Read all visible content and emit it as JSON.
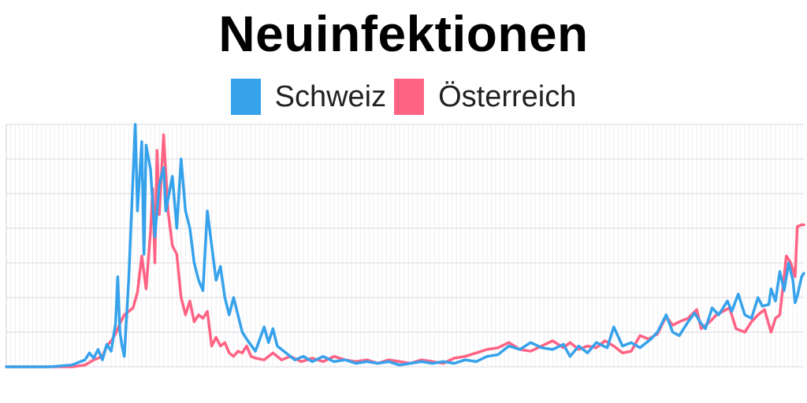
{
  "chart_data": {
    "type": "line",
    "title": "Neuinfektionen",
    "xlabel": "",
    "ylabel": "",
    "ylim": [
      0,
      1400
    ],
    "xlim": [
      0,
      365
    ],
    "grid": true,
    "legend_position": "top",
    "series": [
      {
        "name": "Schweiz",
        "color": "#36a2eb",
        "points": [
          [
            0,
            0
          ],
          [
            20,
            0
          ],
          [
            30,
            10
          ],
          [
            34,
            30
          ],
          [
            36,
            40
          ],
          [
            38,
            80
          ],
          [
            40,
            50
          ],
          [
            42,
            100
          ],
          [
            44,
            40
          ],
          [
            46,
            130
          ],
          [
            48,
            90
          ],
          [
            50,
            250
          ],
          [
            51,
            520
          ],
          [
            52,
            200
          ],
          [
            53,
            120
          ],
          [
            54,
            60
          ],
          [
            56,
            500
          ],
          [
            58,
            1100
          ],
          [
            59,
            1400
          ],
          [
            60,
            900
          ],
          [
            62,
            1300
          ],
          [
            63,
            650
          ],
          [
            64,
            1280
          ],
          [
            66,
            1140
          ],
          [
            68,
            750
          ],
          [
            70,
            1050
          ],
          [
            72,
            1150
          ],
          [
            73,
            900
          ],
          [
            76,
            1100
          ],
          [
            78,
            800
          ],
          [
            80,
            1200
          ],
          [
            82,
            900
          ],
          [
            84,
            800
          ],
          [
            86,
            600
          ],
          [
            88,
            500
          ],
          [
            90,
            440
          ],
          [
            92,
            900
          ],
          [
            94,
            700
          ],
          [
            96,
            500
          ],
          [
            98,
            580
          ],
          [
            100,
            400
          ],
          [
            102,
            300
          ],
          [
            104,
            400
          ],
          [
            106,
            300
          ],
          [
            108,
            200
          ],
          [
            110,
            160
          ],
          [
            114,
            90
          ],
          [
            118,
            230
          ],
          [
            120,
            140
          ],
          [
            122,
            220
          ],
          [
            124,
            120
          ],
          [
            126,
            100
          ],
          [
            128,
            80
          ],
          [
            130,
            60
          ],
          [
            132,
            40
          ],
          [
            136,
            60
          ],
          [
            140,
            30
          ],
          [
            145,
            60
          ],
          [
            150,
            30
          ],
          [
            155,
            40
          ],
          [
            160,
            20
          ],
          [
            165,
            30
          ],
          [
            170,
            20
          ],
          [
            175,
            30
          ],
          [
            180,
            10
          ],
          [
            185,
            20
          ],
          [
            190,
            30
          ],
          [
            195,
            20
          ],
          [
            200,
            30
          ],
          [
            205,
            20
          ],
          [
            210,
            40
          ],
          [
            215,
            30
          ],
          [
            220,
            60
          ],
          [
            225,
            70
          ],
          [
            230,
            120
          ],
          [
            235,
            100
          ],
          [
            240,
            140
          ],
          [
            245,
            110
          ],
          [
            250,
            100
          ],
          [
            255,
            130
          ],
          [
            258,
            60
          ],
          [
            262,
            120
          ],
          [
            266,
            80
          ],
          [
            270,
            140
          ],
          [
            275,
            110
          ],
          [
            278,
            230
          ],
          [
            282,
            120
          ],
          [
            286,
            140
          ],
          [
            290,
            110
          ],
          [
            295,
            160
          ],
          [
            298,
            200
          ],
          [
            300,
            250
          ],
          [
            302,
            300
          ],
          [
            305,
            200
          ],
          [
            308,
            180
          ],
          [
            312,
            260
          ],
          [
            315,
            310
          ],
          [
            318,
            250
          ],
          [
            320,
            220
          ],
          [
            323,
            340
          ],
          [
            326,
            300
          ],
          [
            330,
            380
          ],
          [
            332,
            320
          ],
          [
            335,
            420
          ],
          [
            338,
            300
          ],
          [
            341,
            280
          ],
          [
            344,
            400
          ],
          [
            346,
            350
          ],
          [
            349,
            360
          ],
          [
            350,
            450
          ],
          [
            352,
            380
          ],
          [
            354,
            550
          ],
          [
            356,
            440
          ],
          [
            358,
            600
          ],
          [
            360,
            500
          ],
          [
            361,
            370
          ],
          [
            362,
            410
          ],
          [
            364,
            520
          ],
          [
            365,
            540
          ]
        ]
      },
      {
        "name": "Österreich",
        "color": "#ff6384",
        "points": [
          [
            0,
            0
          ],
          [
            30,
            0
          ],
          [
            36,
            10
          ],
          [
            40,
            40
          ],
          [
            44,
            60
          ],
          [
            46,
            120
          ],
          [
            48,
            150
          ],
          [
            50,
            190
          ],
          [
            52,
            250
          ],
          [
            54,
            300
          ],
          [
            56,
            320
          ],
          [
            58,
            340
          ],
          [
            60,
            430
          ],
          [
            62,
            640
          ],
          [
            64,
            450
          ],
          [
            66,
            780
          ],
          [
            67,
            1030
          ],
          [
            68,
            600
          ],
          [
            69,
            1250
          ],
          [
            70,
            880
          ],
          [
            72,
            1340
          ],
          [
            74,
            900
          ],
          [
            76,
            700
          ],
          [
            78,
            650
          ],
          [
            80,
            400
          ],
          [
            82,
            300
          ],
          [
            84,
            380
          ],
          [
            86,
            260
          ],
          [
            88,
            300
          ],
          [
            90,
            280
          ],
          [
            92,
            320
          ],
          [
            94,
            120
          ],
          [
            96,
            170
          ],
          [
            98,
            120
          ],
          [
            100,
            140
          ],
          [
            102,
            80
          ],
          [
            104,
            60
          ],
          [
            106,
            90
          ],
          [
            108,
            80
          ],
          [
            110,
            120
          ],
          [
            112,
            60
          ],
          [
            114,
            50
          ],
          [
            118,
            40
          ],
          [
            122,
            80
          ],
          [
            126,
            40
          ],
          [
            130,
            60
          ],
          [
            135,
            30
          ],
          [
            140,
            50
          ],
          [
            145,
            30
          ],
          [
            150,
            60
          ],
          [
            155,
            40
          ],
          [
            160,
            30
          ],
          [
            165,
            40
          ],
          [
            170,
            20
          ],
          [
            175,
            40
          ],
          [
            180,
            30
          ],
          [
            185,
            20
          ],
          [
            190,
            40
          ],
          [
            195,
            30
          ],
          [
            200,
            20
          ],
          [
            205,
            50
          ],
          [
            210,
            60
          ],
          [
            215,
            80
          ],
          [
            220,
            100
          ],
          [
            225,
            110
          ],
          [
            230,
            140
          ],
          [
            235,
            100
          ],
          [
            240,
            90
          ],
          [
            245,
            120
          ],
          [
            250,
            150
          ],
          [
            255,
            110
          ],
          [
            258,
            140
          ],
          [
            262,
            100
          ],
          [
            266,
            120
          ],
          [
            270,
            110
          ],
          [
            274,
            150
          ],
          [
            278,
            120
          ],
          [
            282,
            80
          ],
          [
            286,
            90
          ],
          [
            290,
            180
          ],
          [
            294,
            160
          ],
          [
            298,
            190
          ],
          [
            302,
            290
          ],
          [
            305,
            240
          ],
          [
            308,
            260
          ],
          [
            312,
            280
          ],
          [
            316,
            330
          ],
          [
            318,
            220
          ],
          [
            322,
            260
          ],
          [
            325,
            300
          ],
          [
            328,
            320
          ],
          [
            331,
            340
          ],
          [
            334,
            220
          ],
          [
            338,
            200
          ],
          [
            341,
            260
          ],
          [
            344,
            300
          ],
          [
            347,
            330
          ],
          [
            350,
            200
          ],
          [
            352,
            280
          ],
          [
            354,
            300
          ],
          [
            357,
            640
          ],
          [
            359,
            600
          ],
          [
            361,
            520
          ],
          [
            362,
            810
          ],
          [
            364,
            820
          ],
          [
            365,
            820
          ]
        ]
      }
    ]
  },
  "colors": {
    "gridline": "#e4e4ea",
    "background": "#ffffff"
  }
}
